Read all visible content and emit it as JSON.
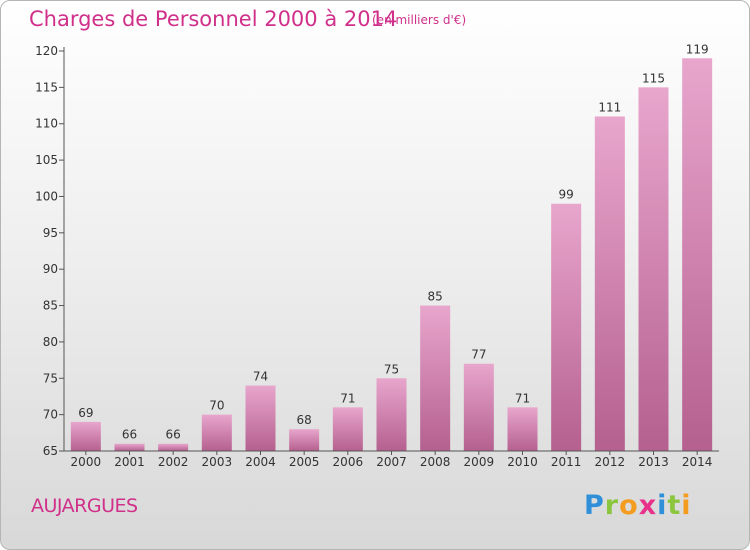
{
  "header": {
    "title": "Charges de Personnel 2000 à 2014",
    "subtitle": "(en milliers d'€)"
  },
  "footer": {
    "town": "AUJARGUES",
    "logo_letters": [
      {
        "char": "P",
        "color": "#2f8fd8"
      },
      {
        "char": "r",
        "color": "#8cc63f"
      },
      {
        "char": "o",
        "color": "#f39c1f"
      },
      {
        "char": "x",
        "color": "#e8318a"
      },
      {
        "char": "i",
        "color": "#2f8fd8"
      },
      {
        "char": "t",
        "color": "#8cc63f"
      },
      {
        "char": "i",
        "color": "#f39c1f"
      }
    ]
  },
  "chart_data": {
    "type": "bar",
    "title": "Charges de Personnel 2000 à 2014",
    "subtitle": "(en milliers d'€)",
    "categories": [
      "2000",
      "2001",
      "2002",
      "2003",
      "2004",
      "2005",
      "2006",
      "2007",
      "2008",
      "2009",
      "2010",
      "2011",
      "2012",
      "2013",
      "2014"
    ],
    "values": [
      69,
      66,
      66,
      70,
      74,
      68,
      71,
      75,
      85,
      77,
      71,
      99,
      111,
      115,
      119
    ],
    "ylim": [
      65,
      120
    ],
    "yticks": [
      65,
      70,
      75,
      80,
      85,
      90,
      95,
      100,
      105,
      110,
      115,
      120
    ],
    "xlabel": "",
    "ylabel": "",
    "grid": false,
    "bar_color_top": "#e8a6cd",
    "bar_color_bottom": "#b5608f"
  }
}
